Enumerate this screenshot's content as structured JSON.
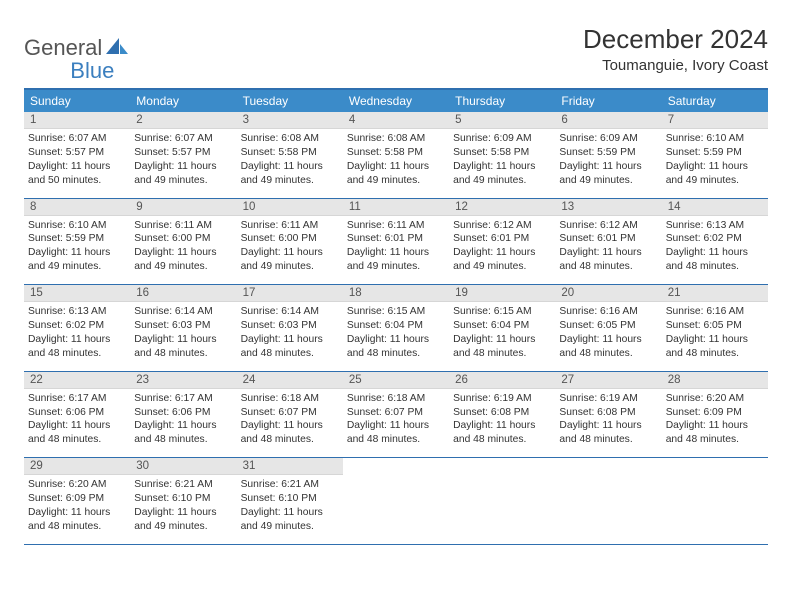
{
  "logo": {
    "text1": "General",
    "text2": "Blue"
  },
  "title": "December 2024",
  "location": "Toumanguie, Ivory Coast",
  "colors": {
    "header_bar": "#3b8bc9",
    "header_border": "#2f6faf",
    "daynum_bg": "#e6e6e6",
    "logo_blue": "#3b7fbf"
  },
  "weekdays": [
    "Sunday",
    "Monday",
    "Tuesday",
    "Wednesday",
    "Thursday",
    "Friday",
    "Saturday"
  ],
  "weeks": [
    [
      {
        "n": "1",
        "sr": "Sunrise: 6:07 AM",
        "ss": "Sunset: 5:57 PM",
        "dl": "Daylight: 11 hours and 50 minutes."
      },
      {
        "n": "2",
        "sr": "Sunrise: 6:07 AM",
        "ss": "Sunset: 5:57 PM",
        "dl": "Daylight: 11 hours and 49 minutes."
      },
      {
        "n": "3",
        "sr": "Sunrise: 6:08 AM",
        "ss": "Sunset: 5:58 PM",
        "dl": "Daylight: 11 hours and 49 minutes."
      },
      {
        "n": "4",
        "sr": "Sunrise: 6:08 AM",
        "ss": "Sunset: 5:58 PM",
        "dl": "Daylight: 11 hours and 49 minutes."
      },
      {
        "n": "5",
        "sr": "Sunrise: 6:09 AM",
        "ss": "Sunset: 5:58 PM",
        "dl": "Daylight: 11 hours and 49 minutes."
      },
      {
        "n": "6",
        "sr": "Sunrise: 6:09 AM",
        "ss": "Sunset: 5:59 PM",
        "dl": "Daylight: 11 hours and 49 minutes."
      },
      {
        "n": "7",
        "sr": "Sunrise: 6:10 AM",
        "ss": "Sunset: 5:59 PM",
        "dl": "Daylight: 11 hours and 49 minutes."
      }
    ],
    [
      {
        "n": "8",
        "sr": "Sunrise: 6:10 AM",
        "ss": "Sunset: 5:59 PM",
        "dl": "Daylight: 11 hours and 49 minutes."
      },
      {
        "n": "9",
        "sr": "Sunrise: 6:11 AM",
        "ss": "Sunset: 6:00 PM",
        "dl": "Daylight: 11 hours and 49 minutes."
      },
      {
        "n": "10",
        "sr": "Sunrise: 6:11 AM",
        "ss": "Sunset: 6:00 PM",
        "dl": "Daylight: 11 hours and 49 minutes."
      },
      {
        "n": "11",
        "sr": "Sunrise: 6:11 AM",
        "ss": "Sunset: 6:01 PM",
        "dl": "Daylight: 11 hours and 49 minutes."
      },
      {
        "n": "12",
        "sr": "Sunrise: 6:12 AM",
        "ss": "Sunset: 6:01 PM",
        "dl": "Daylight: 11 hours and 49 minutes."
      },
      {
        "n": "13",
        "sr": "Sunrise: 6:12 AM",
        "ss": "Sunset: 6:01 PM",
        "dl": "Daylight: 11 hours and 48 minutes."
      },
      {
        "n": "14",
        "sr": "Sunrise: 6:13 AM",
        "ss": "Sunset: 6:02 PM",
        "dl": "Daylight: 11 hours and 48 minutes."
      }
    ],
    [
      {
        "n": "15",
        "sr": "Sunrise: 6:13 AM",
        "ss": "Sunset: 6:02 PM",
        "dl": "Daylight: 11 hours and 48 minutes."
      },
      {
        "n": "16",
        "sr": "Sunrise: 6:14 AM",
        "ss": "Sunset: 6:03 PM",
        "dl": "Daylight: 11 hours and 48 minutes."
      },
      {
        "n": "17",
        "sr": "Sunrise: 6:14 AM",
        "ss": "Sunset: 6:03 PM",
        "dl": "Daylight: 11 hours and 48 minutes."
      },
      {
        "n": "18",
        "sr": "Sunrise: 6:15 AM",
        "ss": "Sunset: 6:04 PM",
        "dl": "Daylight: 11 hours and 48 minutes."
      },
      {
        "n": "19",
        "sr": "Sunrise: 6:15 AM",
        "ss": "Sunset: 6:04 PM",
        "dl": "Daylight: 11 hours and 48 minutes."
      },
      {
        "n": "20",
        "sr": "Sunrise: 6:16 AM",
        "ss": "Sunset: 6:05 PM",
        "dl": "Daylight: 11 hours and 48 minutes."
      },
      {
        "n": "21",
        "sr": "Sunrise: 6:16 AM",
        "ss": "Sunset: 6:05 PM",
        "dl": "Daylight: 11 hours and 48 minutes."
      }
    ],
    [
      {
        "n": "22",
        "sr": "Sunrise: 6:17 AM",
        "ss": "Sunset: 6:06 PM",
        "dl": "Daylight: 11 hours and 48 minutes."
      },
      {
        "n": "23",
        "sr": "Sunrise: 6:17 AM",
        "ss": "Sunset: 6:06 PM",
        "dl": "Daylight: 11 hours and 48 minutes."
      },
      {
        "n": "24",
        "sr": "Sunrise: 6:18 AM",
        "ss": "Sunset: 6:07 PM",
        "dl": "Daylight: 11 hours and 48 minutes."
      },
      {
        "n": "25",
        "sr": "Sunrise: 6:18 AM",
        "ss": "Sunset: 6:07 PM",
        "dl": "Daylight: 11 hours and 48 minutes."
      },
      {
        "n": "26",
        "sr": "Sunrise: 6:19 AM",
        "ss": "Sunset: 6:08 PM",
        "dl": "Daylight: 11 hours and 48 minutes."
      },
      {
        "n": "27",
        "sr": "Sunrise: 6:19 AM",
        "ss": "Sunset: 6:08 PM",
        "dl": "Daylight: 11 hours and 48 minutes."
      },
      {
        "n": "28",
        "sr": "Sunrise: 6:20 AM",
        "ss": "Sunset: 6:09 PM",
        "dl": "Daylight: 11 hours and 48 minutes."
      }
    ],
    [
      {
        "n": "29",
        "sr": "Sunrise: 6:20 AM",
        "ss": "Sunset: 6:09 PM",
        "dl": "Daylight: 11 hours and 48 minutes."
      },
      {
        "n": "30",
        "sr": "Sunrise: 6:21 AM",
        "ss": "Sunset: 6:10 PM",
        "dl": "Daylight: 11 hours and 49 minutes."
      },
      {
        "n": "31",
        "sr": "Sunrise: 6:21 AM",
        "ss": "Sunset: 6:10 PM",
        "dl": "Daylight: 11 hours and 49 minutes."
      },
      null,
      null,
      null,
      null
    ]
  ]
}
